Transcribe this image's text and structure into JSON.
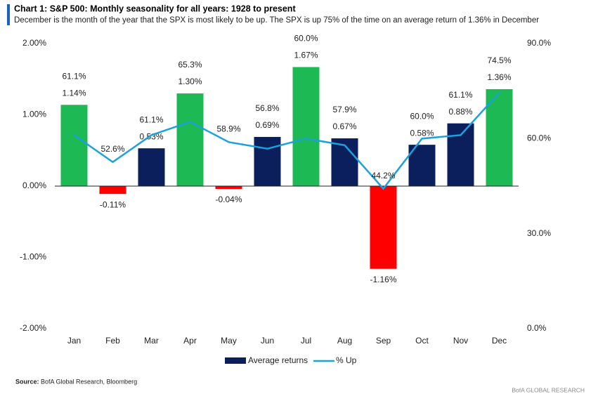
{
  "chart_data": {
    "type": "bar_line",
    "title": "Chart 1: S&P 500: Monthly seasonality for all years: 1928 to present",
    "subtitle": "December is the month of the year that the SPX is most likely to be up. The SPX is up 75% of the time on an average return of 1.36% in December",
    "source_label": "Source:",
    "source": "BofA Global Research, Bloomberg",
    "footer": "BofA GLOBAL RESEARCH",
    "categories": [
      "Jan",
      "Feb",
      "Mar",
      "Apr",
      "May",
      "Jun",
      "Jul",
      "Aug",
      "Sep",
      "Oct",
      "Nov",
      "Dec"
    ],
    "series": [
      {
        "name": "Average returns",
        "type": "bar",
        "color": "#0b1f5c",
        "colors": [
          "#1db954",
          "#ff0000",
          "#0b1f5c",
          "#1db954",
          "#ff0000",
          "#0b1f5c",
          "#1db954",
          "#0b1f5c",
          "#ff0000",
          "#0b1f5c",
          "#0b1f5c",
          "#1db954"
        ],
        "values": [
          1.14,
          -0.11,
          0.53,
          1.3,
          -0.04,
          0.69,
          1.67,
          0.67,
          -1.16,
          0.58,
          0.88,
          1.36
        ],
        "value_labels": [
          "1.14%",
          "-0.11%",
          "0.53%",
          "1.30%",
          "-0.04%",
          "0.69%",
          "1.67%",
          "0.67%",
          "-1.16%",
          "0.58%",
          "0.88%",
          "1.36%"
        ]
      },
      {
        "name": "% Up",
        "type": "line",
        "axis": "y2",
        "color": "#1ba1dc",
        "values": [
          61.1,
          52.6,
          61.1,
          65.3,
          58.9,
          56.8,
          60.0,
          57.9,
          44.2,
          60.0,
          61.1,
          74.5
        ],
        "value_labels": [
          "61.1%",
          "52.6%",
          "61.1%",
          "65.3%",
          "58.9%",
          "56.8%",
          "60.0%",
          "57.9%",
          "44.2%",
          "60.0%",
          "61.1%",
          "74.5%"
        ]
      }
    ],
    "ylim": [
      -2,
      2
    ],
    "yticks": [
      {
        "value": -2,
        "label": "-2.00%"
      },
      {
        "value": -1,
        "label": "-1.00%"
      },
      {
        "value": 0,
        "label": "0.00%"
      },
      {
        "value": 1,
        "label": "1.00%"
      },
      {
        "value": 2,
        "label": "2.00%"
      }
    ],
    "y2lim": [
      0,
      90
    ],
    "y2ticks": [
      {
        "value": 0,
        "label": "0.0%"
      },
      {
        "value": 30,
        "label": "30.0%"
      },
      {
        "value": 60,
        "label": "60.0%"
      },
      {
        "value": 90,
        "label": "90.0%"
      }
    ]
  }
}
